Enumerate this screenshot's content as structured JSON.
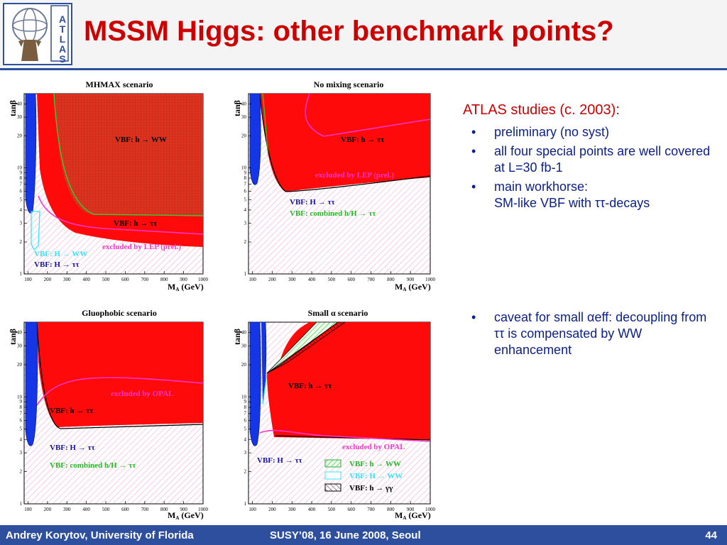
{
  "header": {
    "title": "MSSM Higgs: other benchmark points?",
    "logo_text": "ATLAS",
    "accent": "#2d4f9e",
    "title_color": "#cc0000"
  },
  "plots": [
    {
      "title": "MHMAX scenario",
      "labels": [
        "VBF: h → WW",
        "VBF: h → ττ",
        "excluded by LEP (prel.)",
        "VBF: H → WW",
        "VBF: H → ττ"
      ]
    },
    {
      "title": "No mixing scenario",
      "labels": [
        "VBF: h → ττ",
        "excluded by LEP (prel.)",
        "VBF: H → ττ",
        "VBF: combined h/H → ττ"
      ]
    },
    {
      "title": "Gluophobic scenario",
      "labels": [
        "excluded by OPAL",
        "VBF: h → ττ",
        "VBF: H → ττ",
        "VBF: combined h/H → ττ"
      ]
    },
    {
      "title": "Small α scenario",
      "labels": [
        "VBF: h → ττ",
        "excluded by OPAL",
        "VBF: H → ττ",
        "VBF: h → WW",
        "VBF: H → WW",
        "VBF: h → γγ"
      ]
    }
  ],
  "axes": {
    "ylabel": "tanβ",
    "xlabel": "M",
    "xlabel_sub": "A",
    "xlabel_unit": " (GeV)",
    "xticks": [
      "100",
      "200",
      "300",
      "400",
      "500",
      "600",
      "700",
      "800",
      "900",
      "1000"
    ],
    "yticks": [
      "1",
      "2",
      "3",
      "4",
      "5",
      "6",
      "7",
      "8",
      "9",
      "10",
      "20",
      "30",
      "40"
    ]
  },
  "notes": {
    "heading": "ATLAS studies (c. 2003):",
    "bullets": [
      "preliminary (no syst)",
      "all four special points are well covered at L=30 fb-1",
      "main workhorse:",
      "SM-like VBF with ττ-decays"
    ],
    "caveat": "caveat for small αeff: decoupling from ττ is compensated by WW enhancement"
  },
  "footer": {
    "author": "Andrey Korytov, University of Florida",
    "event": "SUSY’08, 16 June 2008, Seoul",
    "page": "44"
  }
}
